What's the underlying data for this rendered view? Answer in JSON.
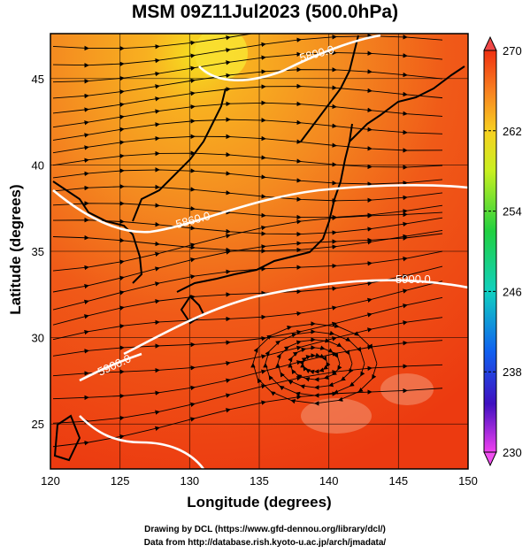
{
  "title": "MSM 09Z11Jul2023 (500.0hPa)",
  "xaxis": {
    "label": "Longitude (degrees)",
    "min": 120,
    "max": 150,
    "ticks": [
      "120",
      "125",
      "130",
      "135",
      "140",
      "145",
      "150"
    ]
  },
  "yaxis": {
    "label": "Latitude  (degrees)",
    "min": 22.4,
    "max": 47.6,
    "ticks": [
      "25",
      "30",
      "35",
      "40",
      "45"
    ]
  },
  "colorbar": {
    "min": 230,
    "max": 270,
    "ticks": [
      "270",
      "262",
      "254",
      "246",
      "238",
      "230"
    ]
  },
  "contour_labels": [
    "5800.0",
    "5860.0",
    "5900.0",
    "5900.0"
  ],
  "credits": {
    "line1": "Drawing by DCL (https://www.gfd-dennou.org/library/dcl/)",
    "line2": "Data from http://database.rish.kyoto-u.ac.jp/arch/jmadata/"
  },
  "colors": {
    "field_low": "#f04000",
    "field_high": "#f8c020",
    "contour": "#ffffff",
    "coast": "#000000"
  }
}
